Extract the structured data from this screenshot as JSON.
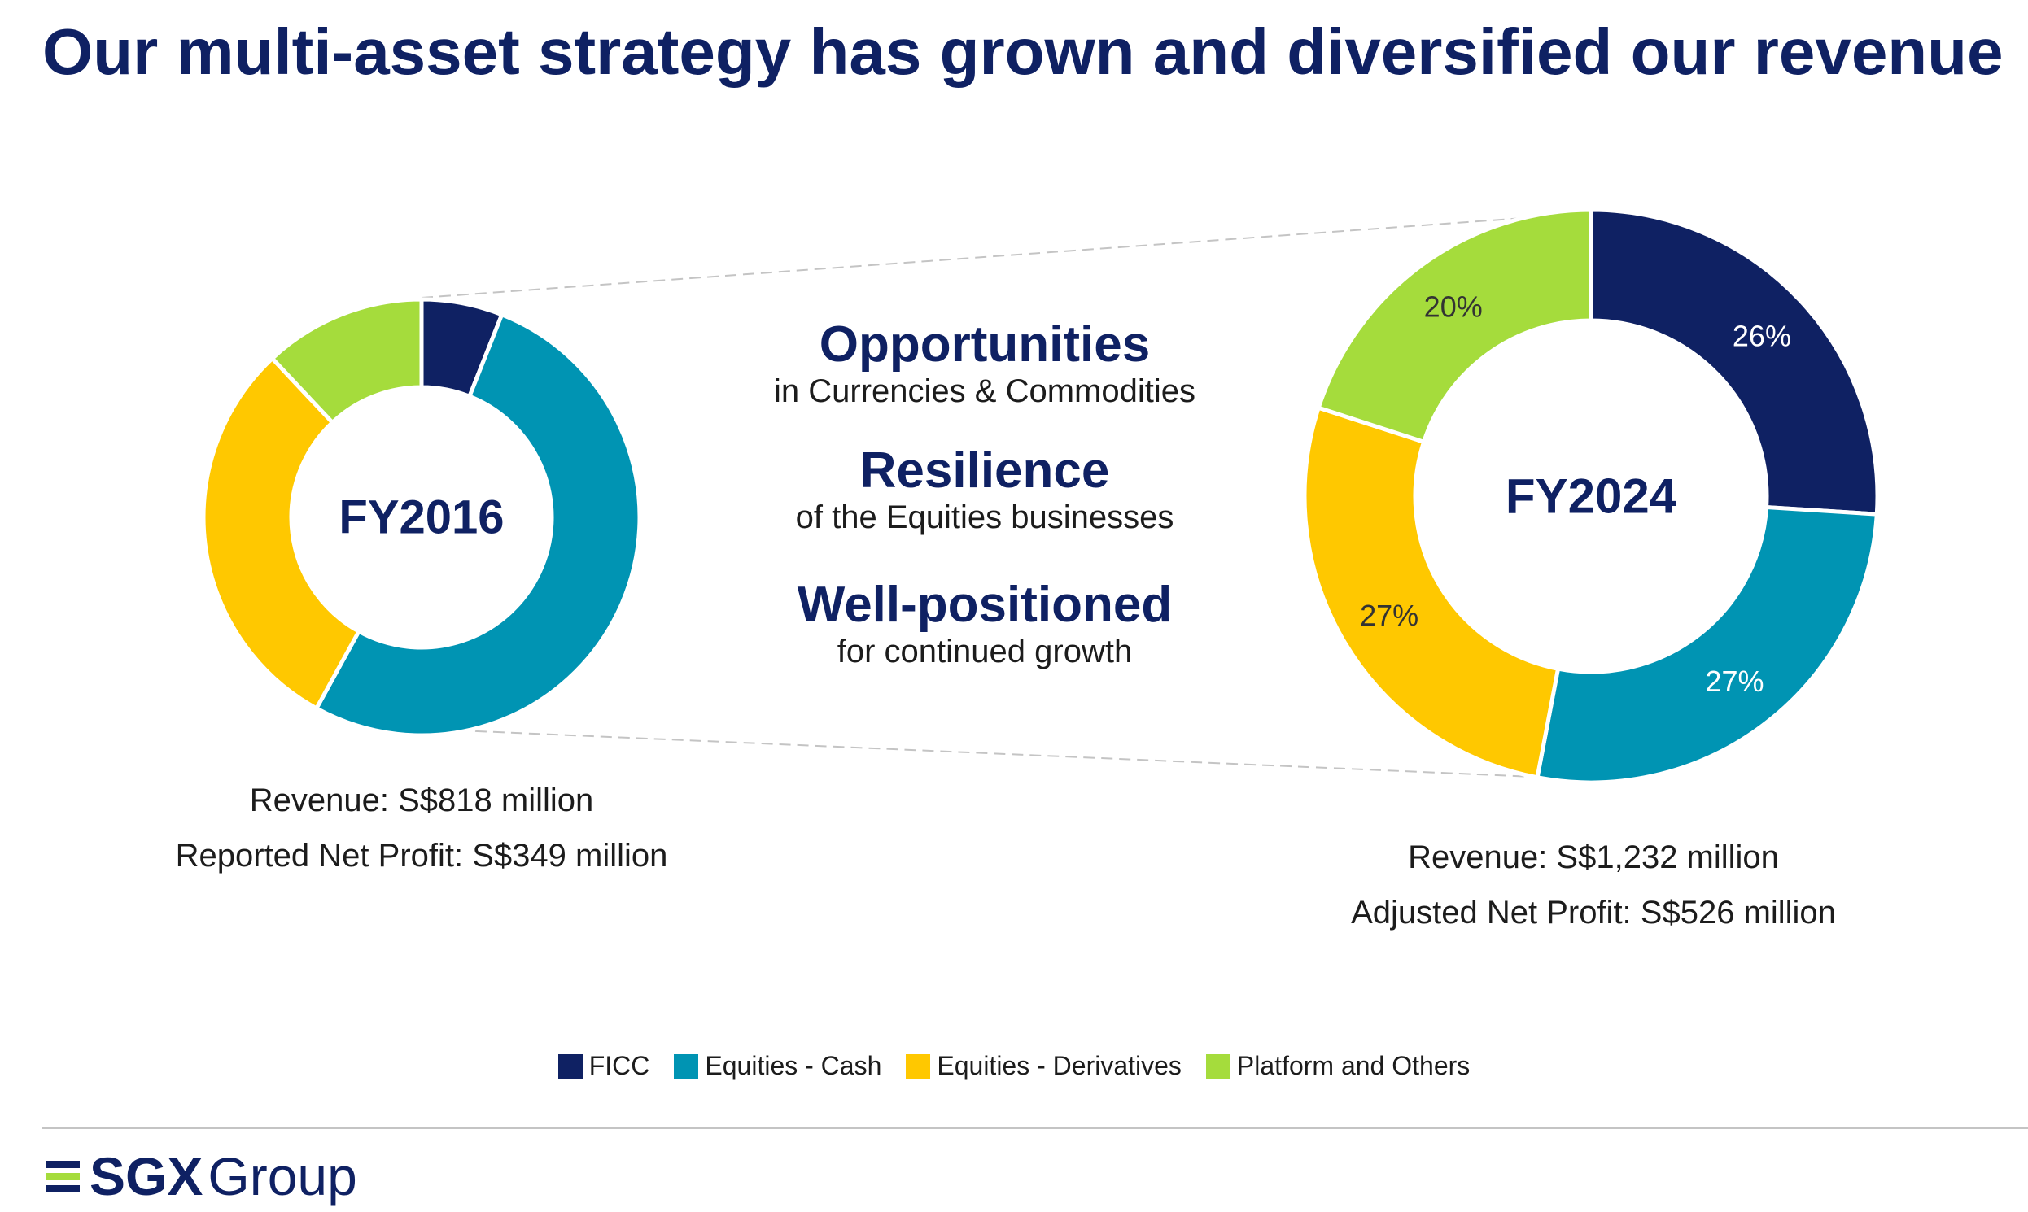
{
  "title": "Our multi-asset strategy has grown and diversified our revenue",
  "center": {
    "items": [
      {
        "heading": "Opportunities",
        "sub": "in Currencies & Commodities"
      },
      {
        "heading": "Resilience",
        "sub": "of the Equities businesses"
      },
      {
        "heading": "Well-positioned",
        "sub": "for continued growth"
      }
    ]
  },
  "colors": {
    "ficc": "#0f2163",
    "equities_cash": "#0094b3",
    "equities_derivatives": "#ffc800",
    "platform_others": "#a5dc3c",
    "title": "#0f2163"
  },
  "chart_data": [
    {
      "type": "pie",
      "label": "FY2016",
      "categories": [
        "FICC",
        "Equities - Cash",
        "Equities - Derivatives",
        "Platform and Others"
      ],
      "values": [
        6,
        52,
        30,
        12
      ],
      "data_labels": [],
      "captions": [
        "Revenue: S$818 million",
        "Reported Net Profit: S$349 million"
      ]
    },
    {
      "type": "pie",
      "label": "FY2024",
      "categories": [
        "FICC",
        "Equities - Cash",
        "Equities - Derivatives",
        "Platform and Others"
      ],
      "values": [
        26,
        27,
        27,
        20
      ],
      "data_labels": [
        "26%",
        "27%",
        "27%",
        "20%"
      ],
      "captions": [
        "Revenue: S$1,232 million",
        "Adjusted Net Profit: S$526 million"
      ]
    }
  ],
  "legend": [
    "FICC",
    "Equities - Cash",
    "Equities - Derivatives",
    "Platform and Others"
  ],
  "logo": {
    "strong": "SGX",
    "rest": "Group"
  }
}
